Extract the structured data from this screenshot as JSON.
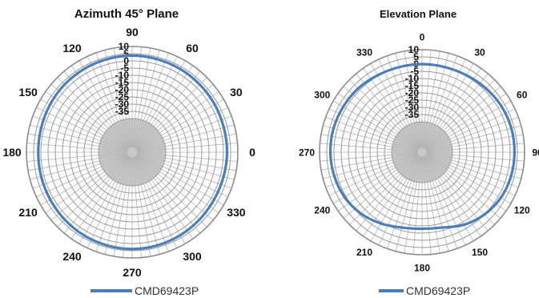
{
  "chart_data": [
    {
      "type": "line",
      "polar": true,
      "title": "Azimuth 45° Plane",
      "angle_ticks": [
        "0",
        "30",
        "60",
        "90",
        "120",
        "150",
        "180",
        "210",
        "240",
        "270",
        "300",
        "330"
      ],
      "radial_ticks": [
        "10",
        "5",
        "0",
        "-5",
        "-10",
        "-15",
        "-20",
        "-25",
        "-30",
        "-35"
      ],
      "rlim": [
        -40,
        10
      ],
      "grid": true,
      "legend_position": "bottom",
      "series": [
        {
          "name": "CMD69423P",
          "color": "#4a7ebb",
          "angle": [
            0,
            15,
            30,
            45,
            60,
            75,
            90,
            105,
            120,
            135,
            150,
            165,
            180,
            195,
            210,
            225,
            240,
            255,
            270,
            285,
            300,
            315,
            330,
            345
          ],
          "values": [
            2.5,
            2.5,
            2.8,
            3.0,
            3.3,
            3.5,
            3.7,
            3.5,
            3.3,
            3.0,
            2.5,
            2.0,
            1.8,
            2.0,
            2.3,
            2.8,
            3.3,
            3.6,
            3.8,
            3.6,
            3.2,
            2.7,
            2.3,
            2.3
          ]
        }
      ]
    },
    {
      "type": "line",
      "polar": true,
      "title": "Elevation Plane",
      "angle_ticks": [
        "0",
        "30",
        "60",
        "90",
        "120",
        "150",
        "180",
        "210",
        "240",
        "270",
        "300",
        "330"
      ],
      "radial_ticks": [
        "10",
        "5",
        "0",
        "-5",
        "-10",
        "-15",
        "-20",
        "-25",
        "-30",
        "-35"
      ],
      "rlim": [
        -40,
        10
      ],
      "grid": true,
      "legend_position": "bottom",
      "series": [
        {
          "name": "CMD69423P",
          "color": "#4a7ebb",
          "angle": [
            0,
            15,
            30,
            45,
            60,
            75,
            90,
            105,
            120,
            135,
            150,
            165,
            180,
            195,
            210,
            225,
            240,
            255,
            270,
            285,
            300,
            315,
            330,
            345
          ],
          "values": [
            0.0,
            0.0,
            0.5,
            1.5,
            2.5,
            3.0,
            3.0,
            2.8,
            2.0,
            0.0,
            -3.0,
            -7.0,
            -8.0,
            -7.0,
            -4.0,
            -1.0,
            1.0,
            2.0,
            2.5,
            2.5,
            2.0,
            1.5,
            0.5,
            0.0
          ]
        }
      ]
    }
  ]
}
